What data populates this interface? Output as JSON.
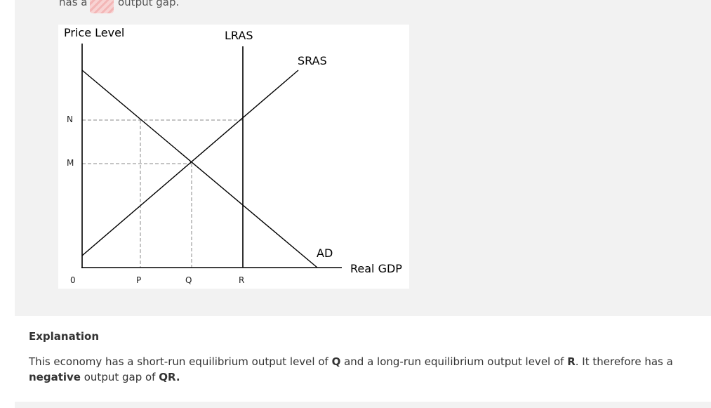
{
  "question": {
    "prefix": "has a",
    "suffix": "output gap."
  },
  "diagram": {
    "y_axis_label": "Price Level",
    "x_axis_label": "Real GDP",
    "origin_label": "0",
    "y_ticks": [
      "N",
      "M"
    ],
    "x_ticks": [
      "P",
      "Q",
      "R"
    ],
    "curves": {
      "lras": "LRAS",
      "sras": "SRAS",
      "ad": "AD"
    }
  },
  "explanation": {
    "heading": "Explanation",
    "s1": "This economy has a short-run equilibrium output level of ",
    "b1": "Q",
    "s2": " and a long-run equilibrium output level of ",
    "b2": "R",
    "s3": ". It therefore has a ",
    "b3": "negative",
    "s4": " output gap of ",
    "b4": "QR."
  }
}
